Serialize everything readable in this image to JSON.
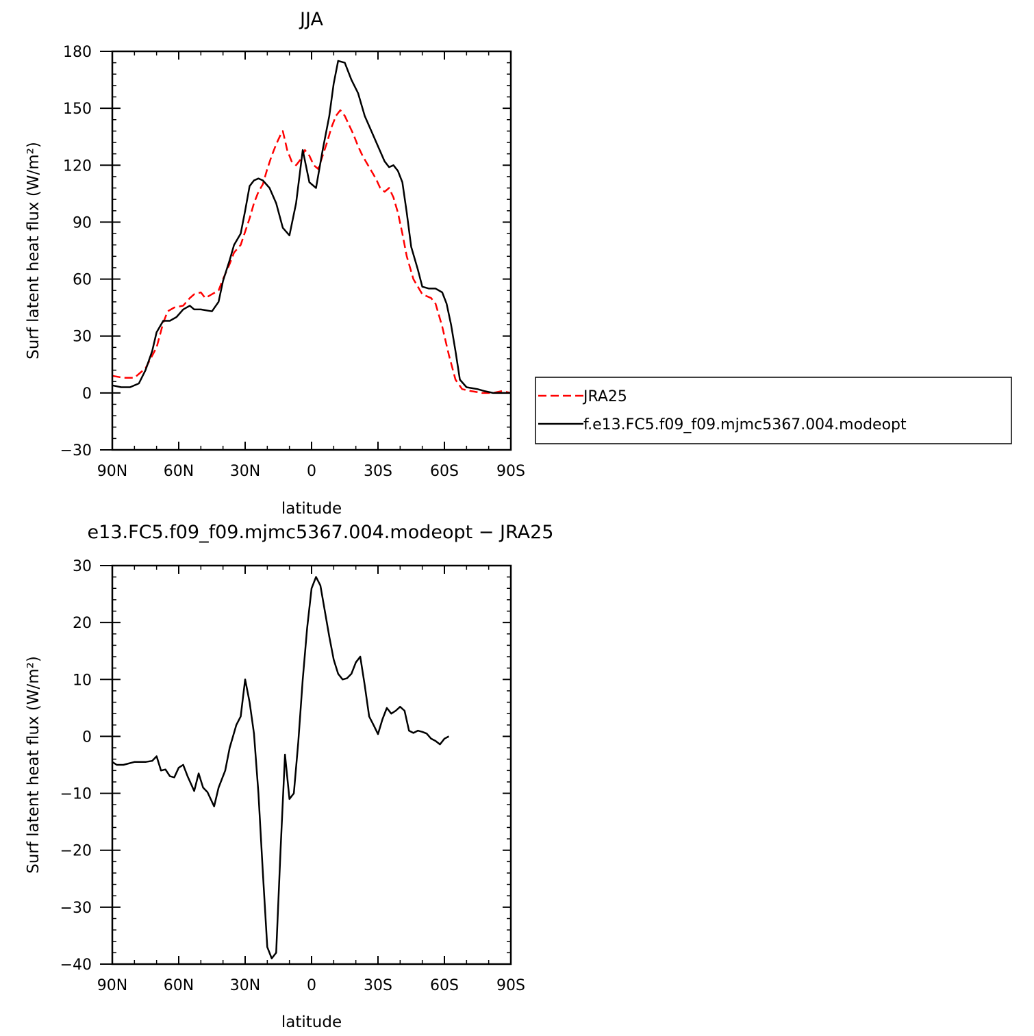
{
  "chart_data": [
    {
      "type": "line",
      "title": "JJA",
      "xlabel": "latitude",
      "ylabel": "Surf latent heat flux (W/m²)",
      "xlim": [
        90,
        -90
      ],
      "ylim": [
        -30,
        180
      ],
      "x_ticks": [
        {
          "value": 90,
          "label": "90N"
        },
        {
          "value": 60,
          "label": "60N"
        },
        {
          "value": 30,
          "label": "30N"
        },
        {
          "value": 0,
          "label": "0"
        },
        {
          "value": -30,
          "label": "30S"
        },
        {
          "value": -60,
          "label": "60S"
        },
        {
          "value": -90,
          "label": "90S"
        }
      ],
      "y_ticks": [
        -30,
        0,
        30,
        60,
        90,
        120,
        150,
        180
      ],
      "legend": "right",
      "series": [
        {
          "name": "JRA25",
          "color": "#ff0000",
          "dash": "dashed",
          "points": [
            [
              90,
              9
            ],
            [
              85,
              8
            ],
            [
              80,
              8
            ],
            [
              75,
              13
            ],
            [
              70,
              24
            ],
            [
              67,
              37
            ],
            [
              65,
              43
            ],
            [
              62,
              45
            ],
            [
              58,
              46
            ],
            [
              55,
              50
            ],
            [
              53,
              52
            ],
            [
              50,
              53
            ],
            [
              48,
              50
            ],
            [
              45,
              52
            ],
            [
              42,
              54
            ],
            [
              40,
              60
            ],
            [
              37,
              68
            ],
            [
              35,
              74
            ],
            [
              32,
              78
            ],
            [
              30,
              85
            ],
            [
              28,
              92
            ],
            [
              26,
              100
            ],
            [
              24,
              106
            ],
            [
              22,
              110
            ],
            [
              20,
              118
            ],
            [
              18,
              125
            ],
            [
              16,
              131
            ],
            [
              14,
              136
            ],
            [
              13,
              138
            ],
            [
              11,
              128
            ],
            [
              9,
              122
            ],
            [
              7,
              120
            ],
            [
              5,
              123
            ],
            [
              3,
              128
            ],
            [
              1,
              125
            ],
            [
              -1,
              120
            ],
            [
              -3,
              118
            ],
            [
              -5,
              125
            ],
            [
              -7,
              132
            ],
            [
              -9,
              140
            ],
            [
              -11,
              146
            ],
            [
              -13,
              149
            ],
            [
              -15,
              146
            ],
            [
              -17,
              141
            ],
            [
              -19,
              136
            ],
            [
              -21,
              130
            ],
            [
              -23,
              125
            ],
            [
              -25,
              121
            ],
            [
              -27,
              117
            ],
            [
              -29,
              113
            ],
            [
              -31,
              108
            ],
            [
              -33,
              106
            ],
            [
              -35,
              108
            ],
            [
              -37,
              103
            ],
            [
              -39,
              95
            ],
            [
              -41,
              84
            ],
            [
              -43,
              72
            ],
            [
              -46,
              60
            ],
            [
              -50,
              52
            ],
            [
              -54,
              50
            ],
            [
              -56,
              47
            ],
            [
              -59,
              35
            ],
            [
              -62,
              20
            ],
            [
              -65,
              7
            ],
            [
              -68,
              2
            ],
            [
              -72,
              1
            ],
            [
              -77,
              0
            ],
            [
              -82,
              0
            ],
            [
              -86,
              1
            ],
            [
              -90,
              0
            ]
          ]
        },
        {
          "name": "f.e13.FC5.f09_f09.mjmc5367.004.modeopt",
          "color": "#000000",
          "dash": "solid",
          "points": [
            [
              90,
              4
            ],
            [
              86,
              3
            ],
            [
              82,
              3
            ],
            [
              78,
              5
            ],
            [
              75,
              12
            ],
            [
              72,
              22
            ],
            [
              70,
              32
            ],
            [
              67,
              38
            ],
            [
              64,
              38
            ],
            [
              61,
              40
            ],
            [
              58,
              44
            ],
            [
              55,
              46
            ],
            [
              53,
              44
            ],
            [
              50,
              44
            ],
            [
              45,
              43
            ],
            [
              42,
              48
            ],
            [
              40,
              59
            ],
            [
              37,
              70
            ],
            [
              35,
              78
            ],
            [
              32,
              84
            ],
            [
              30,
              96
            ],
            [
              28,
              109
            ],
            [
              26,
              112
            ],
            [
              24,
              113
            ],
            [
              22,
              112
            ],
            [
              19,
              108
            ],
            [
              16,
              100
            ],
            [
              13,
              87
            ],
            [
              10,
              83
            ],
            [
              7,
              100
            ],
            [
              4,
              128
            ],
            [
              1,
              111
            ],
            [
              -2,
              108
            ],
            [
              -5,
              128
            ],
            [
              -8,
              146
            ],
            [
              -10,
              163
            ],
            [
              -12,
              175
            ],
            [
              -15,
              174
            ],
            [
              -18,
              165
            ],
            [
              -21,
              158
            ],
            [
              -24,
              146
            ],
            [
              -27,
              138
            ],
            [
              -30,
              130
            ],
            [
              -33,
              122
            ],
            [
              -35,
              119
            ],
            [
              -37,
              120
            ],
            [
              -39,
              117
            ],
            [
              -41,
              111
            ],
            [
              -43,
              95
            ],
            [
              -45,
              77
            ],
            [
              -48,
              65
            ],
            [
              -50,
              56
            ],
            [
              -53,
              55
            ],
            [
              -56,
              55
            ],
            [
              -59,
              53
            ],
            [
              -61,
              47
            ],
            [
              -63,
              36
            ],
            [
              -65,
              22
            ],
            [
              -67,
              7
            ],
            [
              -70,
              3
            ],
            [
              -75,
              2
            ],
            [
              -78,
              1
            ],
            [
              -82,
              0
            ],
            [
              -86,
              0
            ],
            [
              -90,
              0
            ]
          ]
        }
      ]
    },
    {
      "type": "line",
      "title": "e13.FC5.f09_f09.mjmc5367.004.modeopt − JRA25",
      "xlabel": "latitude",
      "ylabel": "Surf latent heat flux (W/m²)",
      "xlim": [
        90,
        -90
      ],
      "ylim": [
        -40,
        30
      ],
      "x_ticks": [
        {
          "value": 90,
          "label": "90N"
        },
        {
          "value": 60,
          "label": "60N"
        },
        {
          "value": 30,
          "label": "30N"
        },
        {
          "value": 0,
          "label": "0"
        },
        {
          "value": -30,
          "label": "30S"
        },
        {
          "value": -60,
          "label": "60S"
        },
        {
          "value": -90,
          "label": "90S"
        }
      ],
      "y_ticks": [
        -40,
        -30,
        -20,
        -10,
        0,
        10,
        20,
        30
      ],
      "series": [
        {
          "color": "#000000",
          "dash": "solid",
          "points": [
            [
              90,
              -4.5
            ],
            [
              88,
              -5
            ],
            [
              85,
              -5
            ],
            [
              80,
              -4.5
            ],
            [
              75,
              -4.5
            ],
            [
              72,
              -4.3
            ],
            [
              70,
              -3.5
            ],
            [
              68,
              -6
            ],
            [
              66,
              -5.8
            ],
            [
              64,
              -7
            ],
            [
              62,
              -7.2
            ],
            [
              60,
              -5.5
            ],
            [
              58,
              -5
            ],
            [
              56,
              -7
            ],
            [
              53,
              -9.6
            ],
            [
              51,
              -6.5
            ],
            [
              49,
              -9
            ],
            [
              47,
              -9.8
            ],
            [
              44,
              -12.3
            ],
            [
              42,
              -9
            ],
            [
              39,
              -6
            ],
            [
              37,
              -2
            ],
            [
              34,
              2
            ],
            [
              32,
              3.5
            ],
            [
              30,
              10
            ],
            [
              28,
              6
            ],
            [
              26,
              0.5
            ],
            [
              24,
              -10
            ],
            [
              22,
              -24
            ],
            [
              20,
              -37
            ],
            [
              18,
              -39
            ],
            [
              16,
              -38
            ],
            [
              14,
              -20
            ],
            [
              12,
              -3.2
            ],
            [
              10,
              -11
            ],
            [
              8,
              -10
            ],
            [
              6,
              -1
            ],
            [
              4,
              10
            ],
            [
              2,
              19
            ],
            [
              0,
              26
            ],
            [
              -2,
              28
            ],
            [
              -4,
              26.5
            ],
            [
              -6,
              22
            ],
            [
              -8,
              17.5
            ],
            [
              -10,
              13.5
            ],
            [
              -12,
              11
            ],
            [
              -14,
              10
            ],
            [
              -16,
              10.2
            ],
            [
              -18,
              11
            ],
            [
              -20,
              13
            ],
            [
              -22,
              14
            ],
            [
              -24,
              9
            ],
            [
              -26,
              3.5
            ],
            [
              -28,
              2
            ],
            [
              -30,
              0.4
            ],
            [
              -32,
              3
            ],
            [
              -34,
              5
            ],
            [
              -36,
              4
            ],
            [
              -38,
              4.5
            ],
            [
              -40,
              5.2
            ],
            [
              -42,
              4.5
            ],
            [
              -44,
              1
            ],
            [
              -46,
              0.6
            ],
            [
              -48,
              1
            ],
            [
              -50,
              0.8
            ],
            [
              -52,
              0.5
            ],
            [
              -54,
              -0.4
            ],
            [
              -56,
              -0.8
            ],
            [
              -58,
              -1.4
            ],
            [
              -60,
              -0.4
            ],
            [
              -62,
              0
            ]
          ]
        }
      ]
    }
  ]
}
